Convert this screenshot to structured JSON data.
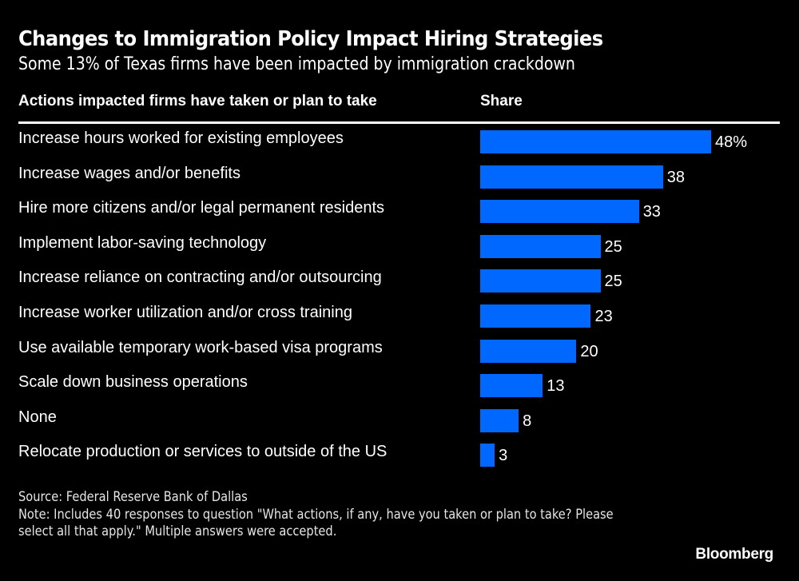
{
  "chart_data": {
    "type": "bar",
    "orientation": "horizontal",
    "title": "Changes to Immigration Policy Impact Hiring Strategies",
    "subtitle": "Some 13% of Texas firms have been impacted by immigration crackdown",
    "category_header": "Actions impacted firms have taken or plan to take",
    "value_header": "Share",
    "categories": [
      "Increase hours worked for existing employees",
      "Increase wages and/or benefits",
      "Hire more citizens and/or legal permanent residents",
      "Implement labor-saving technology",
      "Increase reliance on contracting and/or outsourcing",
      "Increase worker utilization and/or cross training",
      "Use available temporary work-based visa programs",
      "Scale down business operations",
      "None",
      "Relocate production or services to outside of the US"
    ],
    "values": [
      48,
      38,
      33,
      25,
      25,
      23,
      20,
      13,
      8,
      3
    ],
    "value_labels": [
      "48%",
      "38",
      "33",
      "25",
      "25",
      "23",
      "20",
      "13",
      "8",
      "3"
    ],
    "unit": "%",
    "xlim": [
      0,
      48
    ],
    "grid": false,
    "legend": "none",
    "bar_color": "#0068ff",
    "background": "#000000"
  },
  "footer": {
    "source": "Source: Federal Reserve Bank of Dallas",
    "note": "Note: Includes 40 responses to question \"What actions, if any, have you taken or plan to take? Please select all that apply.\" Multiple answers were accepted.",
    "brand": "Bloomberg"
  }
}
